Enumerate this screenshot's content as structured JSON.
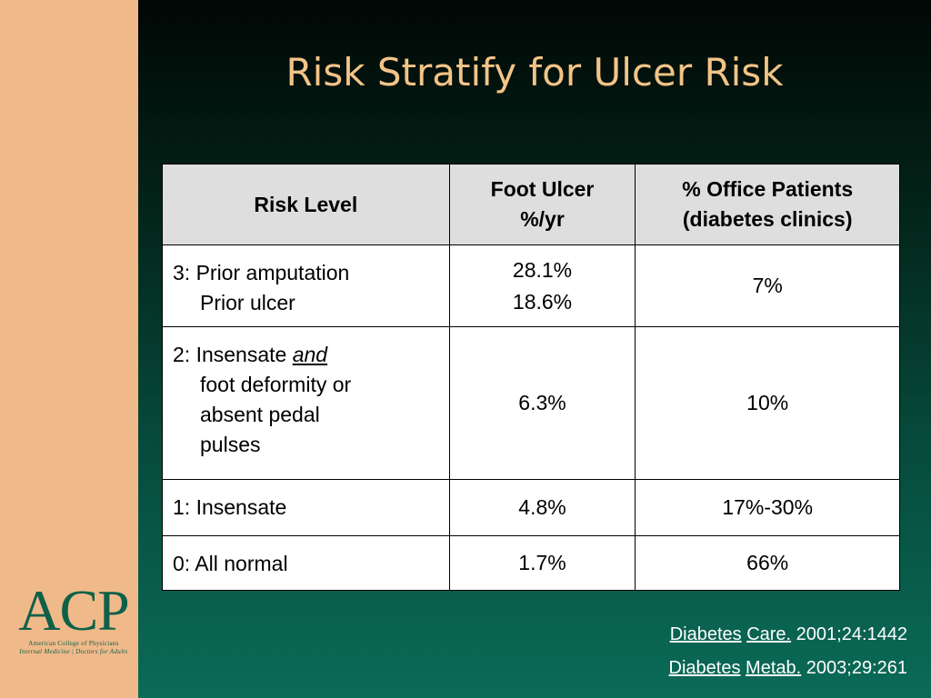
{
  "slide": {
    "title": "Risk Stratify for Ulcer Risk"
  },
  "table": {
    "headers": {
      "risk_level": "Risk Level",
      "foot_ulcer_line1": "Foot Ulcer",
      "foot_ulcer_line2": "%/yr",
      "office_line1": "% Office Patients",
      "office_line2": "(diabetes clinics)"
    },
    "rows": [
      {
        "level_line1": "3: Prior amputation",
        "level_line2": "Prior ulcer",
        "ulcer_line1": "28.1%",
        "ulcer_line2": "18.6%",
        "office": "7%"
      },
      {
        "level_prefix": "2: Insensate",
        "level_and": "and",
        "level_line2": "foot deformity or",
        "level_line3": "absent pedal",
        "level_line4": "pulses",
        "ulcer": "6.3%",
        "office": "10%"
      },
      {
        "level": "1: Insensate",
        "ulcer": "4.8%",
        "office": "17%-30%"
      },
      {
        "level": "0: All normal",
        "ulcer": "1.7%",
        "office": "66%"
      }
    ]
  },
  "logo": {
    "mark": "ACP",
    "line1": "American College of Physicians",
    "line2": "Internal Medicine | Doctors for Adults"
  },
  "references": [
    {
      "journal_word1": "Diabetes",
      "journal_word2": "Care.",
      "citation": "2001;24:1442"
    },
    {
      "journal_word1": "Diabetes",
      "journal_word2": "Metab.",
      "citation": "2003;29:261"
    }
  ],
  "colors": {
    "sidebar": "#f0b98a",
    "title": "#f2c487",
    "background_top": "#010705",
    "background_bottom": "#0b6b58",
    "table_header": "#dedede",
    "logo": "#0e6048",
    "reference_text": "#ffffff"
  }
}
